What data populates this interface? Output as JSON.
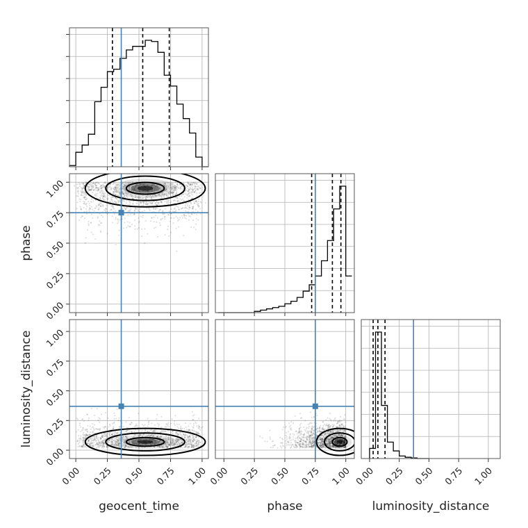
{
  "chart_data": {
    "type": "corner",
    "parameters": [
      "geocent_time",
      "phase",
      "luminosity_distance"
    ],
    "ticks": [
      0.0,
      0.25,
      0.5,
      0.75,
      1.0
    ],
    "tick_labels": [
      "0.00",
      "0.25",
      "0.50",
      "0.75",
      "1.00"
    ],
    "axis_ranges": {
      "geocent_time": [
        -0.05,
        1.05
      ],
      "phase": [
        -0.07,
        1.07
      ],
      "luminosity_distance": [
        -0.07,
        1.1
      ]
    },
    "truth": {
      "geocent_time": 0.36,
      "phase": 0.75,
      "luminosity_distance": 0.37
    },
    "colors": {
      "truth": "#4682b4",
      "line": "#000000",
      "grid": "#b0b0b0"
    },
    "grid": true,
    "histograms": {
      "geocent_time": {
        "bin_edges": [
          -0.05,
          0.0,
          0.05,
          0.1,
          0.15,
          0.2,
          0.25,
          0.3,
          0.35,
          0.4,
          0.45,
          0.5,
          0.55,
          0.6,
          0.65,
          0.7,
          0.75,
          0.8,
          0.85,
          0.9,
          0.95,
          1.0,
          1.05
        ],
        "counts": [
          0.01,
          0.12,
          0.18,
          0.27,
          0.54,
          0.66,
          0.79,
          0.81,
          0.9,
          0.97,
          1.0,
          1.0,
          1.05,
          1.04,
          0.95,
          0.76,
          0.67,
          0.52,
          0.4,
          0.28,
          0.08,
          0.0
        ],
        "quantiles": [
          0.29,
          0.53,
          0.74
        ]
      },
      "phase": {
        "bin_edges": [
          -0.05,
          0.0,
          0.05,
          0.1,
          0.15,
          0.2,
          0.25,
          0.3,
          0.35,
          0.4,
          0.45,
          0.5,
          0.55,
          0.6,
          0.65,
          0.7,
          0.75,
          0.8,
          0.85,
          0.9,
          0.95,
          1.0,
          1.05
        ],
        "counts": [
          0.0,
          0.0,
          0.0,
          0.0,
          0.0,
          0.0,
          0.01,
          0.02,
          0.03,
          0.04,
          0.05,
          0.07,
          0.09,
          0.12,
          0.17,
          0.22,
          0.29,
          0.41,
          0.57,
          0.82,
          1.0,
          0.29
        ],
        "quantiles": [
          0.72,
          0.89,
          0.96
        ]
      },
      "luminosity_distance": {
        "bin_edges": [
          0.0,
          0.05,
          0.1,
          0.15,
          0.2,
          0.25,
          0.3,
          0.35,
          0.4,
          0.45,
          0.5
        ],
        "counts": [
          0.08,
          1.0,
          0.42,
          0.13,
          0.06,
          0.02,
          0.01,
          0.005,
          0.0,
          0.0
        ],
        "quantiles": [
          0.03,
          0.07,
          0.13
        ]
      }
    },
    "density_peaks": {
      "geocent_time_vs_phase": {
        "x": 0.55,
        "y": 0.95,
        "x_spread": 0.25,
        "y_spread": 0.08
      },
      "geocent_time_vs_luminosity_distance": {
        "x": 0.55,
        "y": 0.07,
        "x_spread": 0.25,
        "y_spread": 0.06
      },
      "phase_vs_luminosity_distance": {
        "x": 0.95,
        "y": 0.07,
        "x_spread": 0.1,
        "y_spread": 0.06
      }
    }
  }
}
